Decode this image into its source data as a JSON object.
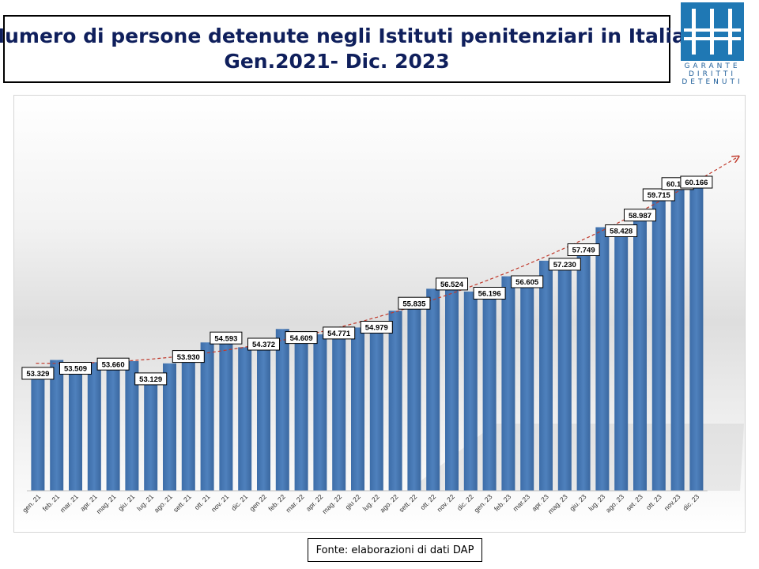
{
  "header": {
    "title_line1": "Numero di persone detenute negli Istituti penitenziari in Italia",
    "title_line2": "Gen.2021- Dic. 2023"
  },
  "logo": {
    "line1": "GARANTE",
    "line2": "DIRITTI",
    "line3": "DETENUTI",
    "color": "#1f78b4"
  },
  "source": {
    "label": "Fonte: elaborazioni di dati DAP"
  },
  "colors": {
    "bar": "#4f81bd",
    "trend": "#c0392b",
    "title": "#0f1f5c"
  },
  "chart_data": {
    "type": "bar",
    "title": "",
    "xlabel": "",
    "ylabel": "",
    "categories": [
      "gen. 21",
      "feb. 21",
      "mar. 21",
      "apr. 21",
      "mag. 21",
      "giu. 21",
      "lug. 21",
      "ago. 21",
      "sett. 21",
      "ott. 21",
      "nov. 21",
      "dic. 21",
      "gen 22",
      "feb. 22",
      "mar. 22",
      "apr. 22",
      "mag. 22",
      "giu 22",
      "lug. 22",
      "ago. 22",
      "sett. 22",
      "ott. 22",
      "nov. 22",
      "dic. 22",
      "gen. 23",
      "feb. 23",
      "mar.23",
      "apr. 23",
      "mag. 23",
      "giu. 23",
      "lug. 23",
      "ago. 23",
      "set. 23",
      "ott. 23",
      "nov.23",
      "dic. 23"
    ],
    "values": [
      53329,
      53680,
      53509,
      53600,
      53660,
      53637,
      53129,
      53557,
      53930,
      54307,
      54593,
      54134,
      54372,
      54786,
      54609,
      54595,
      54771,
      54841,
      54979,
      55441,
      55835,
      56225,
      56524,
      56127,
      56196,
      56674,
      56605,
      57230,
      57230,
      57749,
      58428,
      58428,
      58987,
      59715,
      60116,
      60166
    ],
    "labels": [
      "53.329",
      null,
      "53.509",
      null,
      "53.660",
      null,
      "53.129",
      null,
      "53.930",
      null,
      "54.593",
      null,
      "54.372",
      null,
      "54.609",
      null,
      "54.771",
      null,
      "54.979",
      null,
      "55.835",
      null,
      "56.524",
      null,
      "56.196",
      null,
      "56.605",
      null,
      "57.230",
      "57.749",
      null,
      "58.428",
      "58.987",
      "59.715",
      "60.116",
      "60.166"
    ],
    "ylim": [
      49000,
      61100
    ],
    "grid": false,
    "legend": "none",
    "trendline": "polynomial"
  }
}
